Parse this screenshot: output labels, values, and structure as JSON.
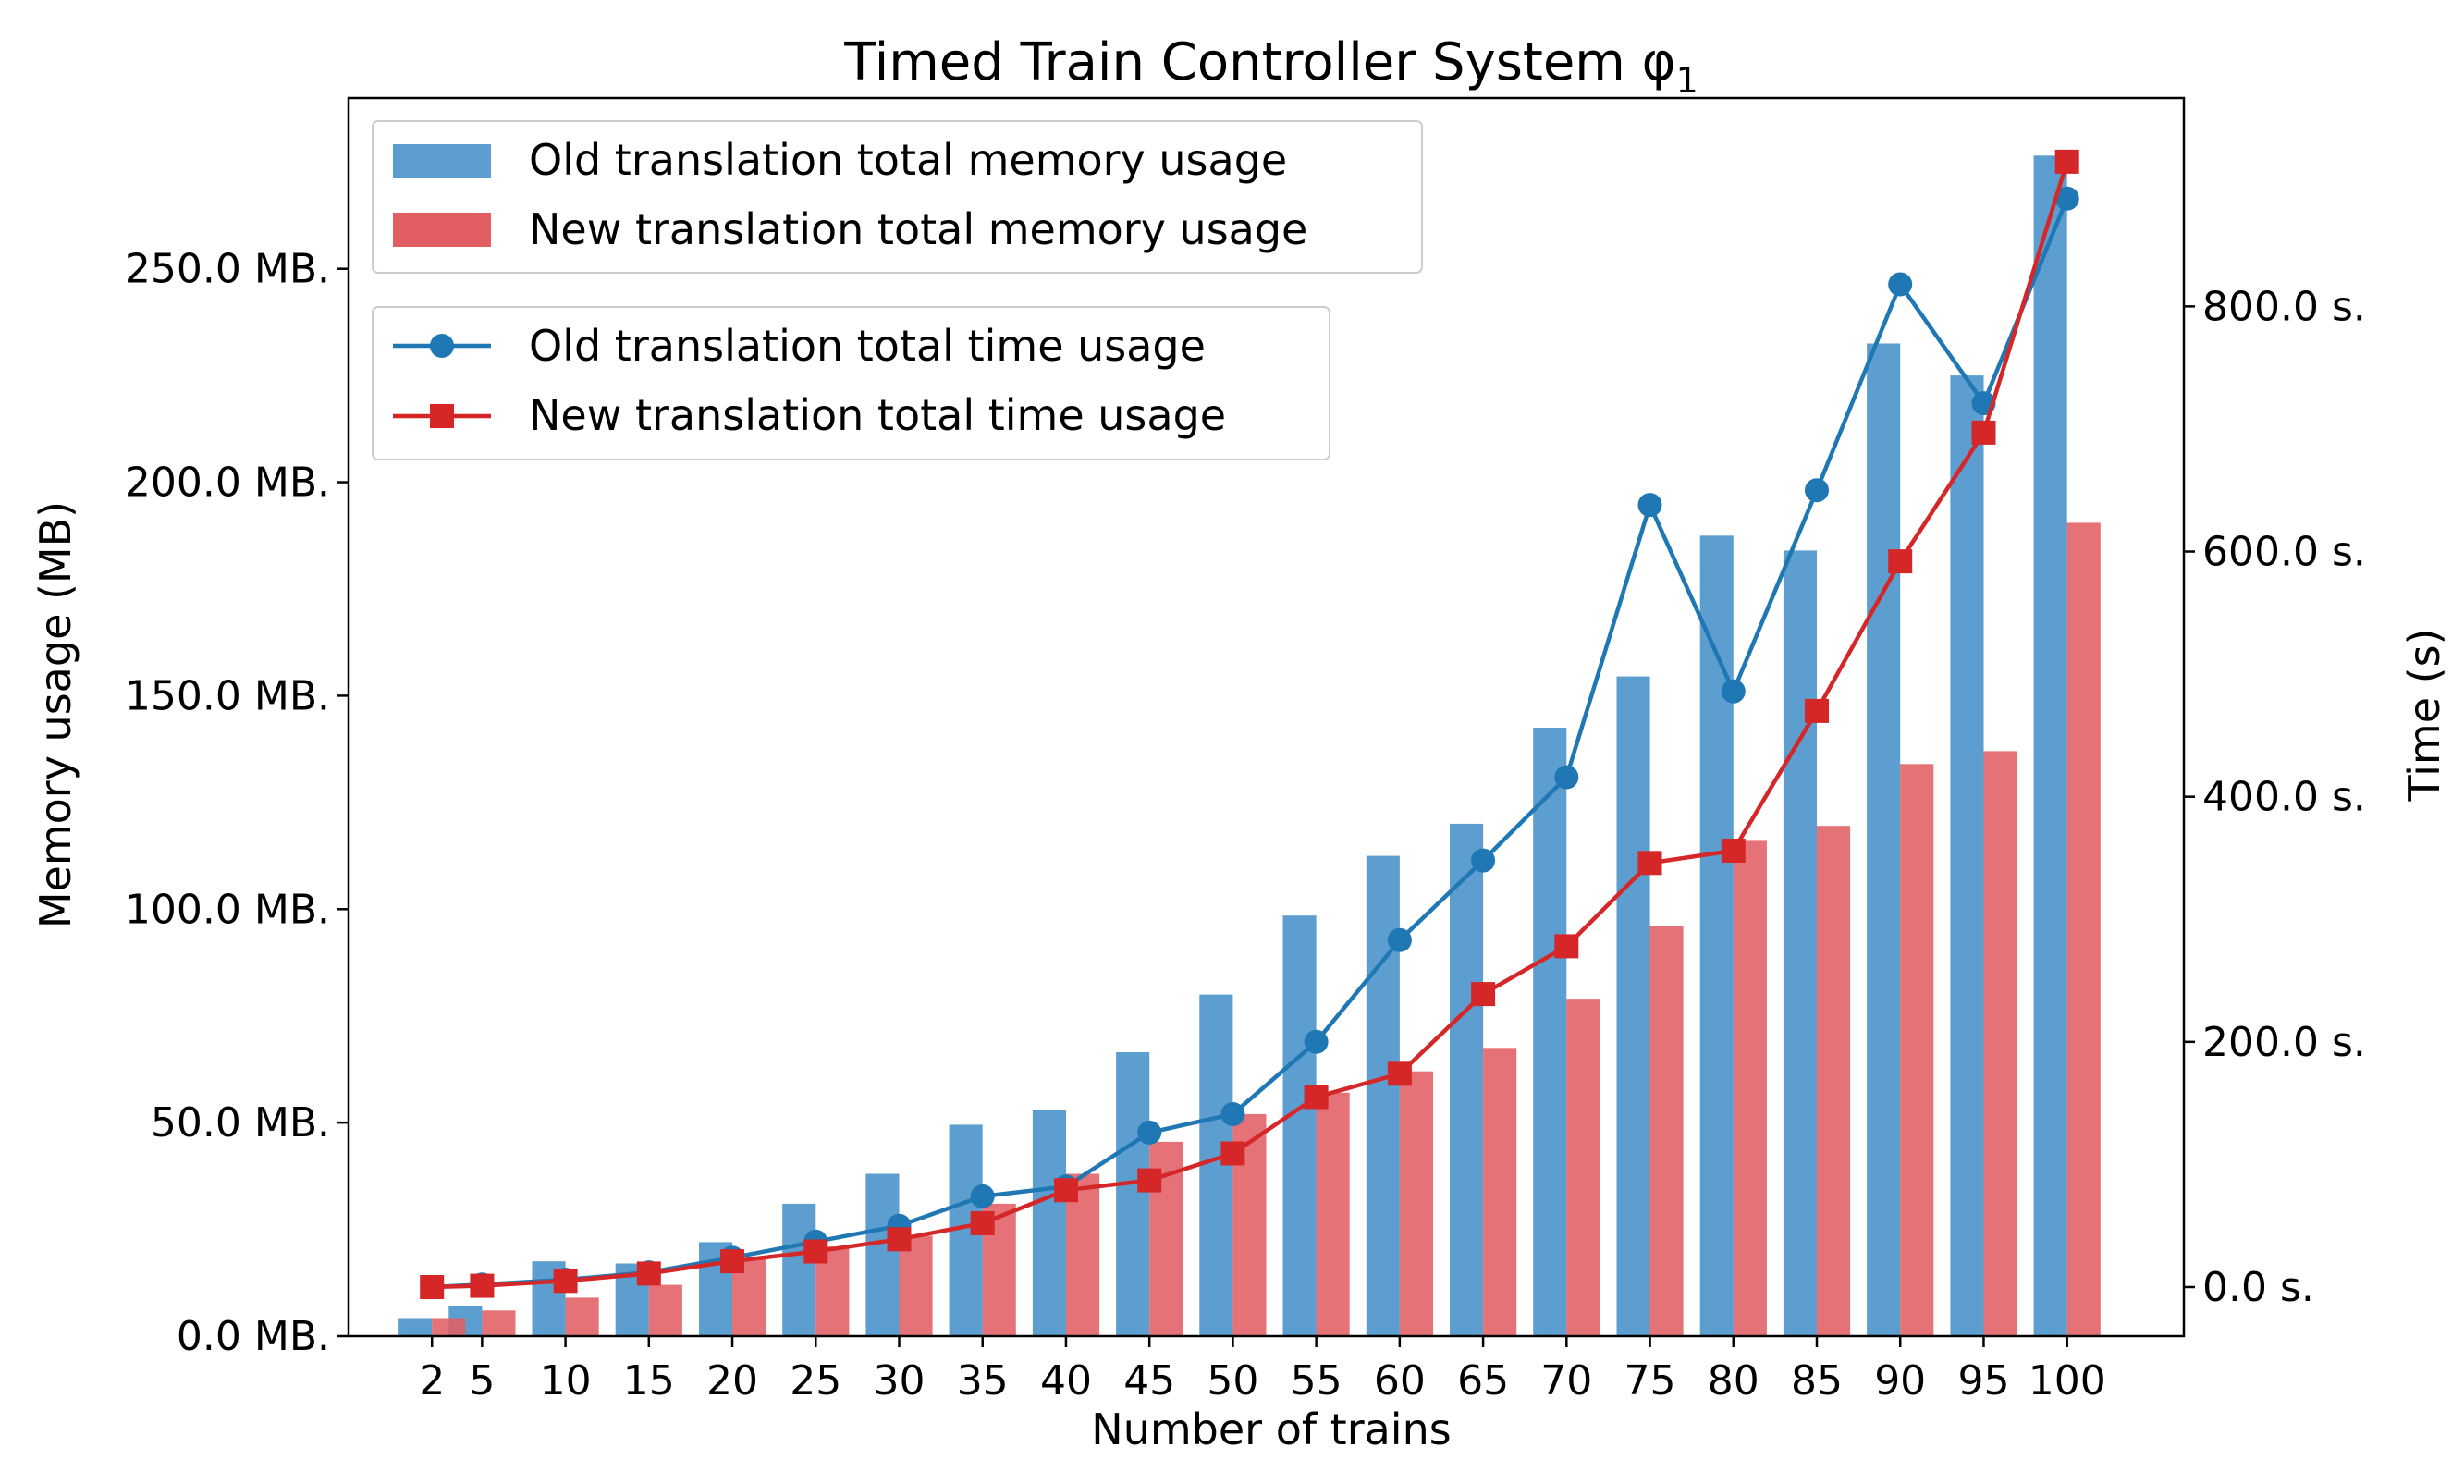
{
  "chart_data": {
    "type": "bar",
    "title": "Timed Train Controller System φ",
    "title_subscript": "1",
    "xlabel": "Number of trains",
    "ylabel_left": "Memory usage (MB)",
    "ylabel_right": "Time (s)",
    "categories": [
      "2",
      "5",
      "10",
      "15",
      "20",
      "25",
      "30",
      "35",
      "40",
      "45",
      "50",
      "55",
      "60",
      "65",
      "70",
      "75",
      "80",
      "85",
      "90",
      "95",
      "100"
    ],
    "x": [
      2,
      5,
      10,
      15,
      20,
      25,
      30,
      35,
      40,
      45,
      50,
      55,
      60,
      65,
      70,
      75,
      80,
      85,
      90,
      95,
      100
    ],
    "xlim": [
      -3,
      107
    ],
    "ylim_left": [
      0,
      290
    ],
    "ylim_right": [
      -40,
      970
    ],
    "y_ticks_left": [
      0,
      50,
      100,
      150,
      200,
      250
    ],
    "y_tick_labels_left": [
      "0.0 MB.",
      "50.0 MB.",
      "100.0 MB.",
      "150.0 MB.",
      "200.0 MB.",
      "250.0 MB."
    ],
    "y_ticks_right": [
      0,
      200,
      400,
      600,
      800
    ],
    "y_tick_labels_right": [
      "0.0 s.",
      "200.0 s.",
      "400.0 s.",
      "600.0 s.",
      "800.0 s."
    ],
    "bar_series": [
      {
        "name": "Old translation total memory usage",
        "color": "#5b9ecf",
        "axis": "left",
        "values": [
          4,
          7,
          17.5,
          17,
          22,
          31,
          38,
          49.5,
          53,
          66.5,
          80,
          98.5,
          112.5,
          120,
          142.5,
          154.5,
          187.5,
          184,
          232.5,
          225,
          276.5
        ]
      },
      {
        "name": "New translation total memory usage",
        "color": "#e15f63",
        "axis": "left",
        "values": [
          4,
          6,
          9,
          12,
          18,
          21,
          23.5,
          31,
          38,
          45.5,
          52,
          57,
          62,
          67.5,
          79,
          96,
          116,
          119.5,
          134,
          137,
          190.5
        ]
      }
    ],
    "line_series": [
      {
        "name": "Old translation total time usage",
        "color": "#1f77b4",
        "marker": "circle",
        "axis": "right",
        "values": [
          0,
          2,
          6,
          12,
          24,
          37,
          50,
          74,
          82,
          126,
          141,
          200,
          283,
          348,
          416,
          638,
          486,
          650,
          818,
          721,
          888
        ]
      },
      {
        "name": "New translation total time usage",
        "color": "#d62728",
        "marker": "square",
        "axis": "right",
        "values": [
          0,
          1,
          5,
          11,
          21,
          29,
          39,
          52,
          79,
          87,
          109,
          155,
          174,
          239,
          278,
          346,
          356,
          470,
          592,
          697,
          918
        ]
      }
    ],
    "grid": false,
    "legend_position": "top-left"
  }
}
